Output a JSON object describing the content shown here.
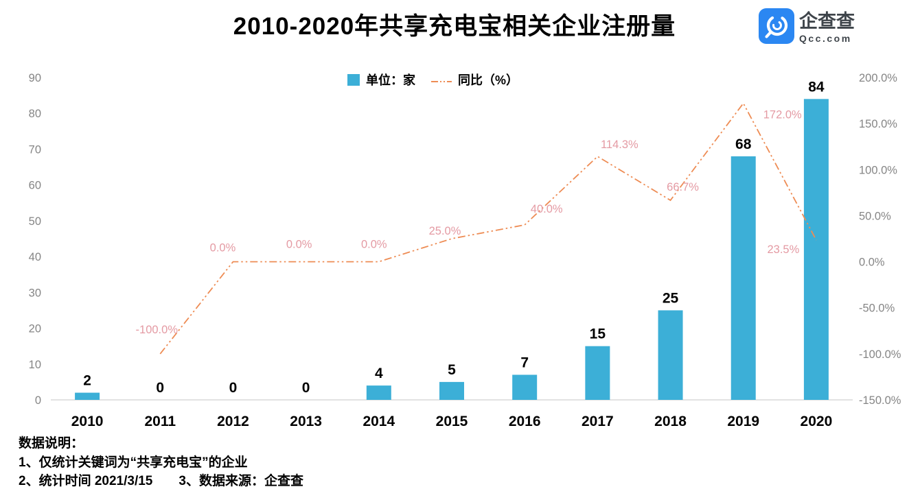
{
  "header": {
    "title": "2010-2020年共享充电宝相关企业注册量"
  },
  "logo": {
    "brand": "企查查",
    "domain": "Qcc.com",
    "icon": "qcc-magnifier-icon",
    "icon_color": "#2B87F2",
    "text_color": "#3F454B"
  },
  "legend": {
    "bar_label": "单位：家",
    "line_label": "同比（%）"
  },
  "chart_data": {
    "type": "bar",
    "title": "2010-2020年共享充电宝相关企业注册量",
    "categories": [
      "2010",
      "2011",
      "2012",
      "2013",
      "2014",
      "2015",
      "2016",
      "2017",
      "2018",
      "2019",
      "2020"
    ],
    "series": [
      {
        "name": "单位：家",
        "type": "bar",
        "axis": "left",
        "color": "#3CAFD7",
        "values": [
          2,
          0,
          0,
          0,
          4,
          5,
          7,
          15,
          25,
          68,
          84
        ],
        "value_labels": [
          "2",
          "0",
          "0",
          "0",
          "4",
          "5",
          "7",
          "15",
          "25",
          "68",
          "84"
        ]
      },
      {
        "name": "同比（%）",
        "type": "line",
        "axis": "right",
        "color": "#EE8C54",
        "label_color": "#E49AA3",
        "dash_style": "dash-dot-dot",
        "values": [
          null,
          -100.0,
          0.0,
          0.0,
          0.0,
          25.0,
          40.0,
          114.3,
          66.7,
          172.0,
          23.5
        ],
        "point_labels": [
          null,
          "-100.0%",
          "0.0%",
          "0.0%",
          "0.0%",
          "25.0%",
          "40.0%",
          "114.3%",
          "66.7%",
          "172.0%",
          "23.5%"
        ],
        "label_offsets": [
          null,
          [
            -5,
            -30
          ],
          [
            -15,
            -15
          ],
          [
            -10,
            -20
          ],
          [
            -7,
            -20
          ],
          [
            -10,
            -6
          ],
          [
            32,
            -18
          ],
          [
            32,
            -12
          ],
          [
            18,
            -14
          ],
          [
            57,
            22
          ],
          [
            -48,
            19
          ]
        ]
      }
    ],
    "left_axis": {
      "min": 0,
      "max": 90,
      "step": 10,
      "ticks": [
        "0",
        "10",
        "20",
        "30",
        "40",
        "50",
        "60",
        "70",
        "80",
        "90"
      ]
    },
    "right_axis": {
      "min": -150,
      "max": 200,
      "step": 50,
      "ticks": [
        "-150.0%",
        "-100.0%",
        "-50.0%",
        "0.0%",
        "50.0%",
        "100.0%",
        "150.0%",
        "200.0%"
      ],
      "tick_values": [
        -150,
        -100,
        -50,
        0,
        50,
        100,
        150,
        200
      ]
    },
    "grid": false,
    "legend_position": "top-center"
  },
  "notes": {
    "heading": "数据说明：",
    "line1": "1、仅统计关键词为“共享充电宝”的企业",
    "line2": "2、统计时间 2021/3/15　　3、数据来源：企查查"
  }
}
